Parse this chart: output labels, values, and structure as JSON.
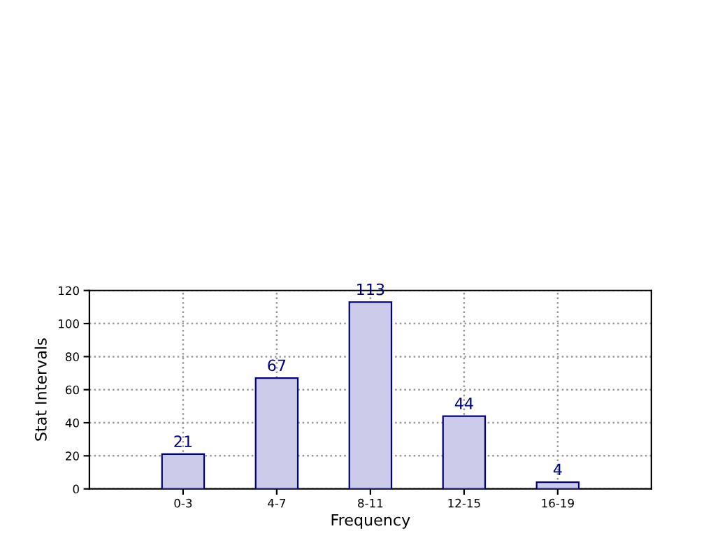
{
  "chart_data": {
    "type": "bar",
    "xlabel": "Frequency",
    "ylabel": "Stat Intervals",
    "categories": [
      "0-3",
      "4-7",
      "8-11",
      "12-15",
      "16-19"
    ],
    "values": [
      21,
      67,
      113,
      44,
      4
    ],
    "color": "#ccccea",
    "ylim": [
      0,
      120
    ],
    "yticks": [
      0,
      20,
      40,
      60,
      80,
      100,
      120
    ],
    "grid": true,
    "data_labels": true
  }
}
